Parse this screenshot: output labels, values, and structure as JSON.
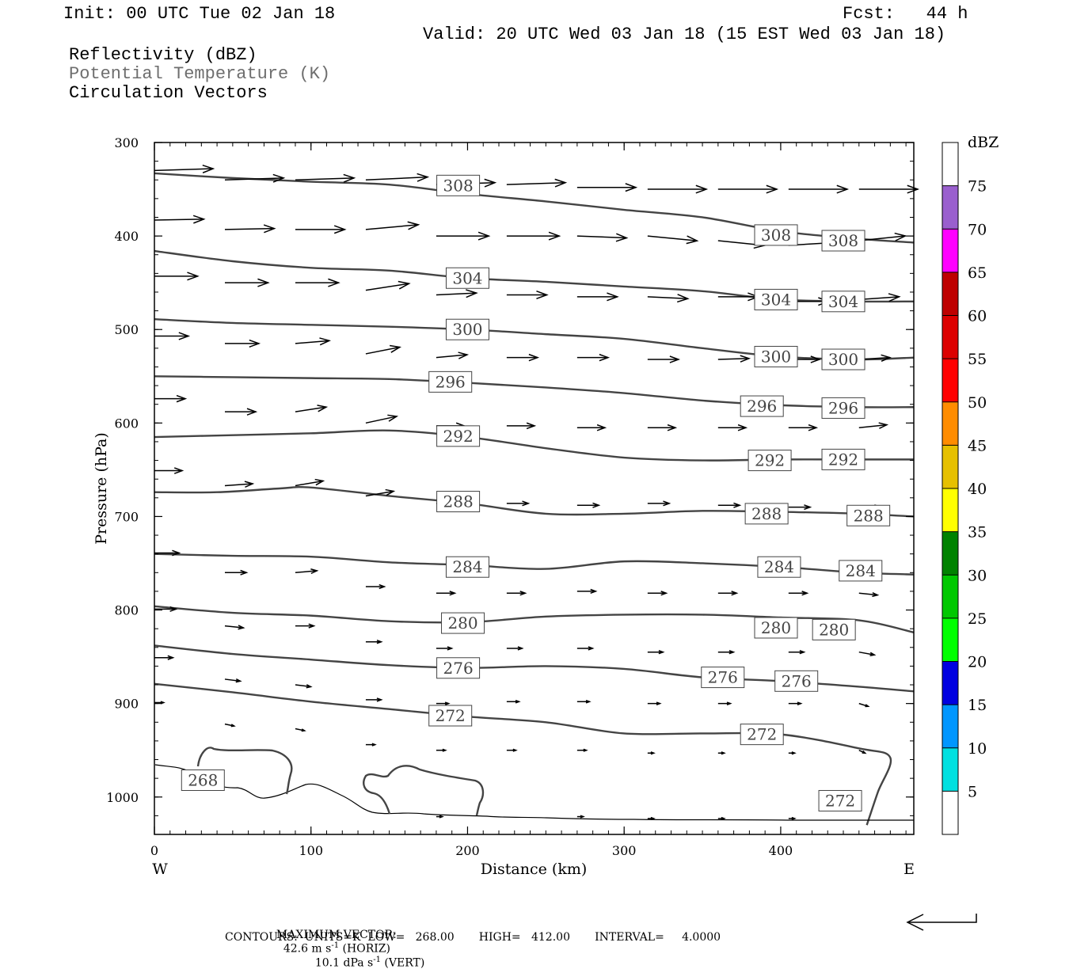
{
  "header": {
    "init": "Init: 00 UTC Tue 02 Jan 18",
    "fcst": "Fcst:   44 h",
    "valid": "Valid: 20 UTC Wed 03 Jan 18 (15 EST Wed 03 Jan 18)",
    "field1": "Reflectivity (dBZ)",
    "field2": "Potential Temperature (K)",
    "field3": "Circulation Vectors"
  },
  "footer": {
    "max_label": "MAXIMUM VECTOR:",
    "horiz_val": "42.6 m s",
    "horiz_unit": " (HORIZ)",
    "vert_val": "10.1 dPa s",
    "vert_unit": " (VERT)",
    "exp": "-1",
    "contours": "CONTOURS:  UNITS=K  LOW=   268.00       HIGH=   412.00       INTERVAL=     4.0000"
  },
  "colors": {
    "contour": "#444444",
    "vector": "#000000",
    "colorbar": [
      "#ffffff",
      "#00e0e0",
      "#0096ff",
      "#0000e0",
      "#00ff00",
      "#00c800",
      "#008200",
      "#ffff00",
      "#e6c000",
      "#ff8c00",
      "#ff0000",
      "#dc0000",
      "#be0000",
      "#ff00ff",
      "#9a5fce",
      "#ffffff"
    ]
  },
  "chart_data": {
    "type": "contour",
    "xlabel": "Distance (km)",
    "ylabel": "Pressure (hPa)",
    "xlim": [
      0,
      485
    ],
    "ylim": [
      1040,
      300
    ],
    "x_ticks": [
      0,
      100,
      200,
      300,
      400
    ],
    "y_ticks": [
      300,
      400,
      500,
      600,
      700,
      800,
      900,
      1000
    ],
    "x_end_labels": {
      "west": "W",
      "east": "E"
    },
    "colorbar": {
      "unit": "dBZ",
      "ticks": [
        5,
        10,
        15,
        20,
        25,
        30,
        35,
        40,
        45,
        50,
        55,
        60,
        65,
        70,
        75
      ],
      "bounds": [
        0,
        5,
        10,
        15,
        20,
        25,
        30,
        35,
        40,
        45,
        50,
        55,
        60,
        65,
        70,
        75,
        80
      ]
    },
    "contours": [
      {
        "theta": 308,
        "points": [
          [
            0,
            333
          ],
          [
            50,
            338
          ],
          [
            100,
            342
          ],
          [
            150,
            345
          ],
          [
            200,
            355
          ],
          [
            250,
            363
          ],
          [
            300,
            372
          ],
          [
            350,
            380
          ],
          [
            400,
            395
          ],
          [
            450,
            403
          ],
          [
            485,
            407
          ]
        ],
        "labels": [
          [
            194,
            346
          ],
          [
            397,
            399
          ],
          [
            440,
            405
          ]
        ]
      },
      {
        "theta": 304,
        "points": [
          [
            0,
            416
          ],
          [
            50,
            427
          ],
          [
            100,
            434
          ],
          [
            150,
            437
          ],
          [
            200,
            445
          ],
          [
            250,
            449
          ],
          [
            300,
            454
          ],
          [
            350,
            459
          ],
          [
            400,
            468
          ],
          [
            450,
            470
          ],
          [
            485,
            470
          ]
        ],
        "labels": [
          [
            200,
            445
          ],
          [
            397,
            468
          ],
          [
            440,
            470
          ]
        ]
      },
      {
        "theta": 300,
        "points": [
          [
            0,
            489
          ],
          [
            50,
            493
          ],
          [
            100,
            495
          ],
          [
            150,
            497
          ],
          [
            200,
            500
          ],
          [
            250,
            505
          ],
          [
            300,
            510
          ],
          [
            350,
            520
          ],
          [
            400,
            529
          ],
          [
            450,
            532
          ],
          [
            485,
            530
          ]
        ],
        "labels": [
          [
            200,
            500
          ],
          [
            397,
            529
          ],
          [
            440,
            532
          ]
        ]
      },
      {
        "theta": 296,
        "points": [
          [
            0,
            550
          ],
          [
            50,
            551
          ],
          [
            100,
            552
          ],
          [
            150,
            553
          ],
          [
            200,
            557
          ],
          [
            250,
            562
          ],
          [
            300,
            568
          ],
          [
            350,
            576
          ],
          [
            400,
            581
          ],
          [
            450,
            583
          ],
          [
            485,
            583
          ]
        ],
        "labels": [
          [
            189,
            556
          ],
          [
            388,
            582
          ],
          [
            440,
            584
          ]
        ]
      },
      {
        "theta": 292,
        "points": [
          [
            0,
            615
          ],
          [
            50,
            613
          ],
          [
            100,
            611
          ],
          [
            150,
            608
          ],
          [
            200,
            615
          ],
          [
            250,
            627
          ],
          [
            300,
            637
          ],
          [
            350,
            640
          ],
          [
            400,
            639
          ],
          [
            450,
            639
          ],
          [
            485,
            639
          ]
        ],
        "labels": [
          [
            194,
            614
          ],
          [
            393,
            640
          ],
          [
            440,
            639
          ]
        ]
      },
      {
        "theta": 288,
        "points": [
          [
            0,
            674
          ],
          [
            40,
            674
          ],
          [
            80,
            670
          ],
          [
            100,
            669
          ],
          [
            150,
            678
          ],
          [
            200,
            686
          ],
          [
            250,
            697
          ],
          [
            300,
            697
          ],
          [
            350,
            694
          ],
          [
            400,
            695
          ],
          [
            450,
            697
          ],
          [
            485,
            700
          ]
        ],
        "labels": [
          [
            194,
            684
          ],
          [
            391,
            697
          ],
          [
            456,
            699
          ]
        ]
      },
      {
        "theta": 284,
        "points": [
          [
            0,
            740
          ],
          [
            50,
            742
          ],
          [
            100,
            743
          ],
          [
            150,
            749
          ],
          [
            200,
            752
          ],
          [
            250,
            756
          ],
          [
            300,
            748
          ],
          [
            350,
            750
          ],
          [
            400,
            754
          ],
          [
            450,
            760
          ],
          [
            485,
            762
          ]
        ],
        "labels": [
          [
            200,
            754
          ],
          [
            399,
            754
          ],
          [
            451,
            758
          ]
        ]
      },
      {
        "theta": 280,
        "points": [
          [
            0,
            796
          ],
          [
            50,
            803
          ],
          [
            100,
            806
          ],
          [
            150,
            812
          ],
          [
            200,
            813
          ],
          [
            250,
            807
          ],
          [
            300,
            805
          ],
          [
            350,
            805
          ],
          [
            400,
            808
          ],
          [
            450,
            811
          ],
          [
            485,
            824
          ]
        ],
        "labels": [
          [
            197,
            814
          ],
          [
            397,
            819
          ],
          [
            434,
            821
          ]
        ]
      },
      {
        "theta": 276,
        "points": [
          [
            0,
            838
          ],
          [
            50,
            847
          ],
          [
            100,
            853
          ],
          [
            150,
            859
          ],
          [
            200,
            862
          ],
          [
            250,
            860
          ],
          [
            300,
            863
          ],
          [
            350,
            872
          ],
          [
            400,
            876
          ],
          [
            450,
            882
          ],
          [
            485,
            887
          ]
        ],
        "labels": [
          [
            194,
            862
          ],
          [
            363,
            872
          ],
          [
            410,
            876
          ]
        ]
      },
      {
        "theta": 272,
        "points": [
          [
            0,
            879
          ],
          [
            50,
            888
          ],
          [
            100,
            898
          ],
          [
            150,
            906
          ],
          [
            200,
            914
          ],
          [
            250,
            920
          ],
          [
            300,
            932
          ],
          [
            350,
            932
          ],
          [
            400,
            933
          ],
          [
            450,
            948
          ],
          [
            470,
            958
          ],
          [
            462,
            995
          ],
          [
            455,
            1030
          ]
        ],
        "labels": [
          [
            189,
            913
          ],
          [
            388,
            933
          ],
          [
            438,
            1004
          ]
        ]
      }
    ],
    "cold_region_268": {
      "theta": 268,
      "labels": [
        [
          31,
          982
        ]
      ]
    },
    "vectors_description": "westerly circulation vectors, stronger aloft",
    "vectors": [
      [
        0,
        330,
        38,
        -2
      ],
      [
        45,
        340,
        38,
        -2
      ],
      [
        90,
        340,
        38,
        -2
      ],
      [
        135,
        340,
        40,
        -3
      ],
      [
        180,
        345,
        38,
        -2
      ],
      [
        225,
        345,
        38,
        -2
      ],
      [
        270,
        348,
        38,
        0
      ],
      [
        315,
        350,
        38,
        0
      ],
      [
        360,
        350,
        38,
        0
      ],
      [
        405,
        350,
        38,
        0
      ],
      [
        450,
        350,
        38,
        0
      ],
      [
        0,
        383,
        32,
        -1
      ],
      [
        45,
        393,
        32,
        -1
      ],
      [
        90,
        393,
        32,
        0
      ],
      [
        135,
        393,
        34,
        -5
      ],
      [
        180,
        400,
        34,
        0
      ],
      [
        225,
        400,
        34,
        0
      ],
      [
        270,
        400,
        32,
        2
      ],
      [
        315,
        400,
        32,
        5
      ],
      [
        360,
        405,
        30,
        5
      ],
      [
        405,
        410,
        30,
        -3
      ],
      [
        450,
        405,
        30,
        -5
      ],
      [
        0,
        443,
        28,
        0
      ],
      [
        45,
        450,
        28,
        0
      ],
      [
        90,
        450,
        28,
        0
      ],
      [
        135,
        458,
        28,
        -7
      ],
      [
        180,
        463,
        26,
        -2
      ],
      [
        225,
        463,
        26,
        0
      ],
      [
        270,
        465,
        26,
        0
      ],
      [
        315,
        465,
        26,
        2
      ],
      [
        360,
        465,
        26,
        0
      ],
      [
        405,
        470,
        26,
        0
      ],
      [
        450,
        468,
        26,
        -3
      ],
      [
        0,
        507,
        22,
        0
      ],
      [
        45,
        515,
        22,
        0
      ],
      [
        90,
        515,
        22,
        -3
      ],
      [
        135,
        526,
        22,
        -7
      ],
      [
        180,
        530,
        20,
        -3
      ],
      [
        225,
        530,
        20,
        0
      ],
      [
        270,
        530,
        20,
        0
      ],
      [
        315,
        532,
        20,
        0
      ],
      [
        360,
        532,
        20,
        -1
      ],
      [
        405,
        532,
        20,
        0
      ],
      [
        450,
        532,
        20,
        -2
      ],
      [
        0,
        574,
        20,
        0
      ],
      [
        45,
        588,
        20,
        0
      ],
      [
        90,
        588,
        20,
        -5
      ],
      [
        135,
        600,
        20,
        -7
      ],
      [
        180,
        603,
        18,
        0
      ],
      [
        225,
        603,
        18,
        0
      ],
      [
        270,
        605,
        18,
        0
      ],
      [
        315,
        605,
        18,
        0
      ],
      [
        360,
        605,
        18,
        0
      ],
      [
        405,
        605,
        18,
        0
      ],
      [
        450,
        605,
        18,
        -3
      ],
      [
        0,
        651,
        18,
        0
      ],
      [
        45,
        667,
        18,
        -2
      ],
      [
        90,
        667,
        18,
        -5
      ],
      [
        135,
        678,
        18,
        -5
      ],
      [
        180,
        686,
        14,
        0
      ],
      [
        225,
        686,
        14,
        0
      ],
      [
        270,
        688,
        14,
        0
      ],
      [
        315,
        686,
        14,
        0
      ],
      [
        360,
        688,
        14,
        0
      ],
      [
        405,
        690,
        14,
        0
      ],
      [
        450,
        690,
        14,
        0
      ],
      [
        0,
        739,
        16,
        0
      ],
      [
        45,
        760,
        14,
        0
      ],
      [
        90,
        760,
        14,
        -2
      ],
      [
        135,
        775,
        12,
        0
      ],
      [
        180,
        782,
        12,
        0
      ],
      [
        225,
        782,
        12,
        0
      ],
      [
        270,
        780,
        12,
        0
      ],
      [
        315,
        782,
        12,
        0
      ],
      [
        360,
        782,
        12,
        0
      ],
      [
        405,
        782,
        12,
        0
      ],
      [
        450,
        782,
        12,
        2
      ],
      [
        0,
        799,
        14,
        0
      ],
      [
        45,
        817,
        12,
        2
      ],
      [
        90,
        817,
        12,
        0
      ],
      [
        135,
        834,
        10,
        0
      ],
      [
        180,
        841,
        10,
        0
      ],
      [
        225,
        841,
        10,
        0
      ],
      [
        270,
        841,
        10,
        0
      ],
      [
        315,
        845,
        10,
        0
      ],
      [
        360,
        845,
        10,
        0
      ],
      [
        405,
        845,
        10,
        0
      ],
      [
        450,
        845,
        10,
        3
      ],
      [
        0,
        851,
        12,
        0
      ],
      [
        45,
        874,
        10,
        2
      ],
      [
        90,
        880,
        10,
        2
      ],
      [
        135,
        896,
        10,
        0
      ],
      [
        180,
        900,
        8,
        0
      ],
      [
        225,
        898,
        8,
        0
      ],
      [
        270,
        898,
        8,
        0
      ],
      [
        315,
        900,
        8,
        0
      ],
      [
        360,
        900,
        8,
        0
      ],
      [
        405,
        900,
        8,
        0
      ],
      [
        450,
        900,
        6,
        3
      ],
      [
        0,
        899,
        6,
        0
      ],
      [
        45,
        922,
        6,
        2
      ],
      [
        90,
        927,
        6,
        2
      ],
      [
        135,
        944,
        6,
        0
      ],
      [
        180,
        950,
        6,
        0
      ],
      [
        225,
        950,
        6,
        0
      ],
      [
        270,
        950,
        6,
        0
      ],
      [
        315,
        953,
        4,
        0
      ],
      [
        360,
        953,
        4,
        0
      ],
      [
        405,
        953,
        4,
        0
      ],
      [
        450,
        950,
        4,
        3
      ],
      [
        180,
        1021,
        4,
        0
      ],
      [
        270,
        1021,
        4,
        0
      ],
      [
        315,
        1023,
        4,
        0
      ],
      [
        360,
        1023,
        4,
        0
      ],
      [
        405,
        1023,
        4,
        0
      ]
    ]
  },
  "legend_arrow": "reference-vector"
}
